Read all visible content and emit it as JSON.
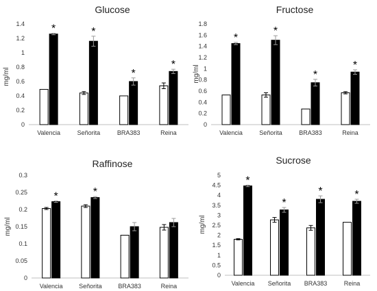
{
  "chart_data": [
    {
      "type": "bar",
      "title": "Glucose",
      "ylabel": "mg/ml",
      "xlabel": "",
      "ylim": [
        0,
        1.4
      ],
      "yticks": [
        "0",
        "0.2",
        "0.4",
        "0.6",
        "0.8",
        "1",
        "1.2",
        "1.4"
      ],
      "categories": [
        "Valencia",
        "Señorita",
        "BRA383",
        "Reina"
      ],
      "series": [
        {
          "values": [
            0.49,
            0.44,
            0.4,
            0.54
          ],
          "errors": [
            0.0,
            0.02,
            0.0,
            0.04
          ],
          "fill": "#ffffff"
        },
        {
          "values": [
            1.26,
            1.16,
            0.6,
            0.74
          ],
          "errors": [
            0.01,
            0.07,
            0.05,
            0.03
          ],
          "fill": "#000000"
        }
      ],
      "significance": [
        "*",
        "*",
        "*",
        "*"
      ]
    },
    {
      "type": "bar",
      "title": "Fructose",
      "ylabel": "mg/ml",
      "xlabel": "",
      "ylim": [
        0,
        1.8
      ],
      "yticks": [
        "0",
        "0.2",
        "0.4",
        "0.6",
        "0.8",
        "1",
        "1.2",
        "1.4",
        "1.6",
        "1.8"
      ],
      "categories": [
        "Valencia",
        "Señorita",
        "BRA383",
        "Reina"
      ],
      "series": [
        {
          "values": [
            0.53,
            0.53,
            0.28,
            0.57
          ],
          "errors": [
            0.0,
            0.04,
            0.0,
            0.02
          ],
          "fill": "#ffffff"
        },
        {
          "values": [
            1.45,
            1.51,
            0.75,
            0.94
          ],
          "errors": [
            0.02,
            0.08,
            0.06,
            0.04
          ],
          "fill": "#000000"
        }
      ],
      "significance": [
        "*",
        "*",
        "*",
        "*"
      ]
    },
    {
      "type": "bar",
      "title": "Raffinose",
      "ylabel": "mg/ml",
      "xlabel": "",
      "ylim": [
        0,
        0.3
      ],
      "yticks": [
        "0",
        "0.05",
        "0.1",
        "0.15",
        "0.2",
        "0.25",
        "0.3"
      ],
      "categories": [
        "Valencia",
        "Señorita",
        "BRA383",
        "Reina"
      ],
      "series": [
        {
          "values": [
            0.203,
            0.21,
            0.125,
            0.148
          ],
          "errors": [
            0.003,
            0.004,
            0.0,
            0.008
          ],
          "fill": "#ffffff"
        },
        {
          "values": [
            0.223,
            0.235,
            0.15,
            0.162
          ],
          "errors": [
            0.002,
            0.003,
            0.012,
            0.012
          ],
          "fill": "#000000"
        }
      ],
      "significance": [
        "*",
        "*",
        "",
        ""
      ]
    },
    {
      "type": "bar",
      "title": "Sucrose",
      "ylabel": "mg/ml",
      "xlabel": "",
      "ylim": [
        0,
        5
      ],
      "yticks": [
        "0",
        "0.5",
        "1",
        "1.5",
        "2",
        "2.5",
        "3",
        "3.5",
        "4",
        "4.5",
        "5"
      ],
      "categories": [
        "Valencia",
        "Señorita",
        "BRA383",
        "Reina"
      ],
      "series": [
        {
          "values": [
            1.8,
            2.77,
            2.37,
            2.65
          ],
          "errors": [
            0.03,
            0.12,
            0.12,
            0.0
          ],
          "fill": "#ffffff"
        },
        {
          "values": [
            4.47,
            3.27,
            3.8,
            3.7
          ],
          "errors": [
            0.04,
            0.12,
            0.17,
            0.1
          ],
          "fill": "#000000"
        }
      ],
      "significance": [
        "*",
        "*",
        "*",
        "*"
      ]
    }
  ]
}
